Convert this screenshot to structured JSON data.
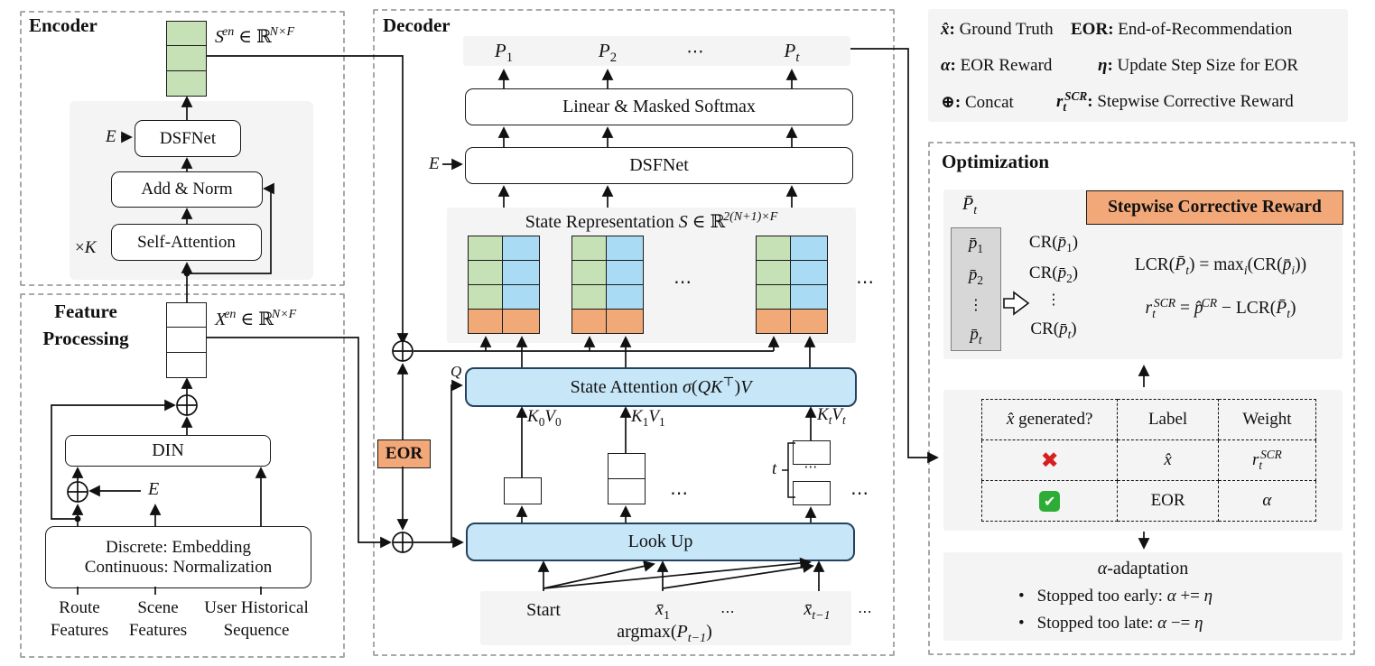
{
  "colors": {
    "cell_green": "#c6e1b5",
    "cell_blue": "#a9dcf4",
    "cell_orange": "#f0a977",
    "eor_orange": "#f2a878",
    "blue_box_fill": "#c7e7f8",
    "blue_box_border": "#24425f",
    "panel_gray": "#f4f4f4",
    "dashed_border_gray": "#a8a8a8",
    "cross_red": "#d81e1e",
    "check_green": "#2dad35"
  },
  "encoder": {
    "title": "Encoder",
    "s_en": [
      [
        "i",
        "S"
      ],
      [
        "supi",
        "en"
      ],
      [
        "t",
        " ∈ ℝ"
      ],
      [
        "supi",
        "N×F"
      ]
    ],
    "e": [
      [
        "i",
        "E"
      ]
    ],
    "dsfnet": "DSFNet",
    "add_norm": "Add & Norm",
    "self_attention": "Self-Attention",
    "times_k": [
      [
        "t",
        "×"
      ],
      [
        "i",
        "K"
      ]
    ]
  },
  "feature_processing": {
    "title_line1": "Feature",
    "title_line2": "Processing",
    "x_en": [
      [
        "i",
        "X"
      ],
      [
        "supi",
        "en"
      ],
      [
        "t",
        " ∈ ℝ"
      ],
      [
        "supi",
        "N×F"
      ]
    ],
    "din": "DIN",
    "e": [
      [
        "i",
        "E"
      ]
    ],
    "discrete_line1": "Discrete: Embedding",
    "discrete_line2": "Continuous: Normalization",
    "input1_line1": "Route",
    "input1_line2": "Features",
    "input2_line1": "Scene",
    "input2_line2": "Features",
    "input3_line1": "User Historical",
    "input3_line2": "Sequence"
  },
  "decoder": {
    "title": "Decoder",
    "p1": [
      [
        "i",
        "P"
      ],
      [
        "sub",
        "1"
      ]
    ],
    "p2": [
      [
        "i",
        "P"
      ],
      [
        "sub",
        "2"
      ]
    ],
    "pt": [
      [
        "i",
        "P"
      ],
      [
        "subi",
        "t"
      ]
    ],
    "dots": "⋯",
    "linear_masked_softmax": "Linear & Masked Softmax",
    "dsfnet": "DSFNet",
    "e": [
      [
        "i",
        "E"
      ]
    ],
    "state_rep_title": [
      [
        "t",
        "State Representation "
      ],
      [
        "i",
        "S"
      ],
      [
        "t",
        " ∈ ℝ"
      ],
      [
        "supi",
        "2(N+1)×F"
      ]
    ],
    "state_attention": [
      [
        "t",
        "State Attention "
      ],
      [
        "i",
        "σ"
      ],
      [
        "t",
        "("
      ],
      [
        "i",
        "QK"
      ],
      [
        "sup",
        "⊤"
      ],
      [
        "t",
        ")"
      ],
      [
        "i",
        "V"
      ]
    ],
    "q": [
      [
        "i",
        "Q"
      ]
    ],
    "k0v0": [
      [
        "i",
        "K"
      ],
      [
        "sub",
        "0"
      ],
      [
        "i",
        "V"
      ],
      [
        "sub",
        "0"
      ]
    ],
    "k1v1": [
      [
        "i",
        "K"
      ],
      [
        "sub",
        "1"
      ],
      [
        "i",
        "V"
      ],
      [
        "sub",
        "1"
      ]
    ],
    "ktvt": [
      [
        "i",
        "K"
      ],
      [
        "subi",
        "t"
      ],
      [
        "i",
        "V"
      ],
      [
        "subi",
        "t"
      ]
    ],
    "t_label": [
      [
        "i",
        "t"
      ]
    ],
    "look_up": "Look Up",
    "eor": "EOR",
    "start": "Start",
    "xbar1": [
      [
        "i",
        "x̄"
      ],
      [
        "sub",
        "1"
      ]
    ],
    "xbart1": [
      [
        "i",
        "x̄"
      ],
      [
        "subi",
        "t−1"
      ]
    ],
    "argmax": [
      [
        "t",
        "argmax("
      ],
      [
        "i",
        "P"
      ],
      [
        "subi",
        "t−1"
      ],
      [
        "t",
        ")"
      ]
    ]
  },
  "legend": {
    "r1a": [
      [
        "bi",
        "x̂"
      ],
      [
        "b",
        ":"
      ],
      [
        "t",
        " Ground Truth"
      ]
    ],
    "r1b": [
      [
        "b",
        "EOR"
      ],
      [
        "b",
        ":"
      ],
      [
        "t",
        " End-of-Recommendation"
      ]
    ],
    "r2a": [
      [
        "bi",
        "α"
      ],
      [
        "b",
        ":"
      ],
      [
        "t",
        " EOR Reward"
      ]
    ],
    "r2b": [
      [
        "bi",
        "η"
      ],
      [
        "b",
        ":"
      ],
      [
        "t",
        " Update Step Size for EOR"
      ]
    ],
    "r3a": [
      [
        "b",
        "⊕:"
      ],
      [
        "t",
        " Concat"
      ]
    ],
    "r3b": [
      [
        "bi",
        "r"
      ],
      [
        "subb",
        "t"
      ],
      [
        "supb",
        "SCR"
      ],
      [
        "b",
        ":"
      ],
      [
        "t",
        " Stepwise Corrective Reward"
      ]
    ]
  },
  "optimization": {
    "title": "Optimization",
    "pbar_t": [
      [
        "i",
        "P̄"
      ],
      [
        "subi",
        "t"
      ]
    ],
    "pbar1": [
      [
        "i",
        "p̄"
      ],
      [
        "sub",
        "1"
      ]
    ],
    "pbar2": [
      [
        "i",
        "p̄"
      ],
      [
        "sub",
        "2"
      ]
    ],
    "vdots": "⋮",
    "pbart": [
      [
        "i",
        "p̄"
      ],
      [
        "subi",
        "t"
      ]
    ],
    "cr1": [
      [
        "t",
        "CR("
      ],
      [
        "i",
        "p̄"
      ],
      [
        "sub",
        "1"
      ],
      [
        "t",
        ")"
      ]
    ],
    "cr2": [
      [
        "t",
        "CR("
      ],
      [
        "i",
        "p̄"
      ],
      [
        "sub",
        "2"
      ],
      [
        "t",
        ")"
      ]
    ],
    "crt": [
      [
        "t",
        "CR("
      ],
      [
        "i",
        "p̄"
      ],
      [
        "subi",
        "t"
      ],
      [
        "t",
        ")"
      ]
    ],
    "scr_header": "Stepwise Corrective Reward",
    "lcr_formula": [
      [
        "t",
        "LCR("
      ],
      [
        "i",
        "P̄"
      ],
      [
        "subi",
        "t"
      ],
      [
        "t",
        ") = max"
      ],
      [
        "subi",
        "i"
      ],
      [
        "t",
        "(CR("
      ],
      [
        "i",
        "p̄"
      ],
      [
        "subi",
        "i"
      ],
      [
        "t",
        "))"
      ]
    ],
    "rscr_formula": [
      [
        "i",
        "r"
      ],
      [
        "subi",
        "t"
      ],
      [
        "supi",
        "SCR"
      ],
      [
        "t",
        " = "
      ],
      [
        "i",
        "p̂"
      ],
      [
        "supi",
        "CR"
      ],
      [
        "t",
        " − LCR("
      ],
      [
        "i",
        "P̄"
      ],
      [
        "subi",
        "t"
      ],
      [
        "t",
        ")"
      ]
    ],
    "table": {
      "h1": [
        [
          "i",
          "x̂"
        ],
        [
          "t",
          " generated?"
        ]
      ],
      "h2": "Label",
      "h3": "Weight",
      "r1_mark": "✖",
      "r1_label": [
        [
          "i",
          "x̂"
        ]
      ],
      "r1_weight": [
        [
          "i",
          "r"
        ],
        [
          "subi",
          "t"
        ],
        [
          "supi",
          "SCR"
        ]
      ],
      "r2_mark": "✔",
      "r2_label": "EOR",
      "r2_weight": [
        [
          "i",
          "α"
        ]
      ]
    },
    "alpha_adaptation": [
      [
        "i",
        "α"
      ],
      [
        "t",
        "-adaptation"
      ]
    ],
    "bullet1": [
      [
        "t",
        "Stopped too early: "
      ],
      [
        "i",
        "α"
      ],
      [
        "t",
        " += "
      ],
      [
        "i",
        "η"
      ]
    ],
    "bullet2": [
      [
        "t",
        "Stopped too late: "
      ],
      [
        "i",
        "α"
      ],
      [
        "t",
        " −= "
      ],
      [
        "i",
        "η"
      ]
    ],
    "bullet_char": "•"
  }
}
